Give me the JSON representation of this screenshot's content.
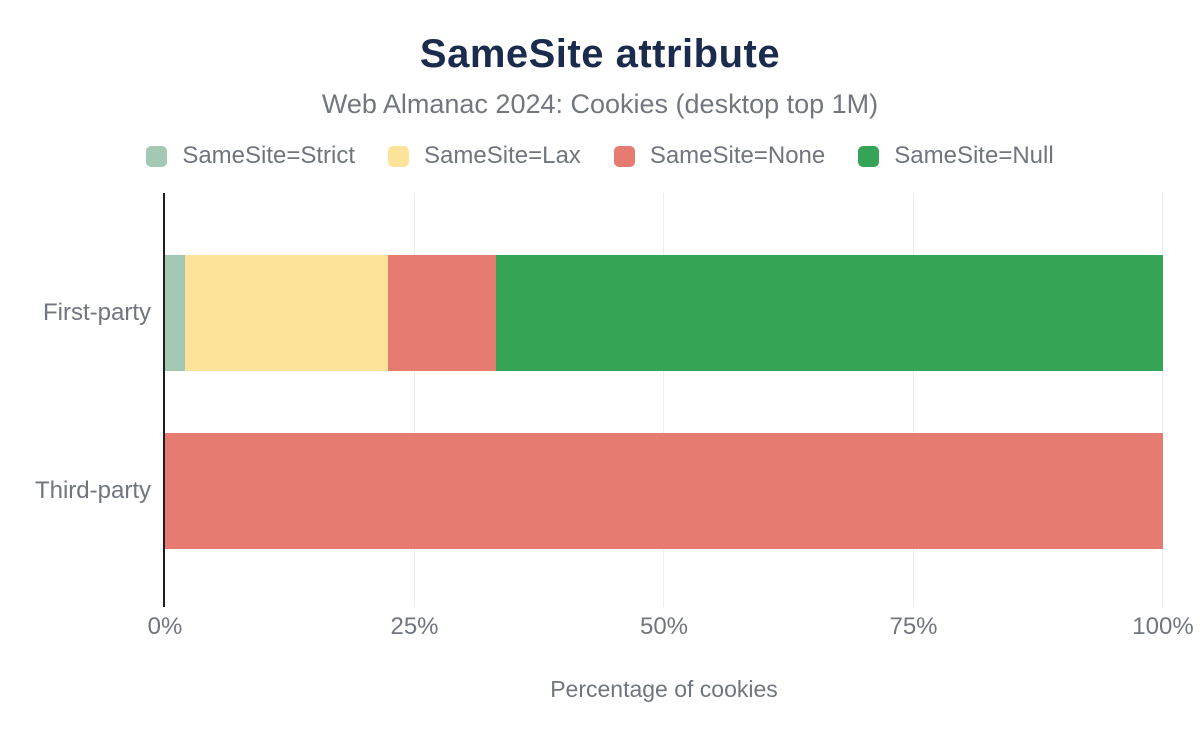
{
  "title": "SameSite attribute",
  "subtitle": "Web Almanac 2024: Cookies (desktop top 1M)",
  "colors": {
    "strict": "#a3c9b5",
    "lax": "#fde39a",
    "none": "#e57b71",
    "null": "#36a457",
    "title_text": "#1b2b4d",
    "subtitle_text": "#72777f",
    "label_text": "#70757e",
    "axis_line": "#1f1f1f",
    "gridline": "#ededed",
    "background": "#ffffff"
  },
  "legend": [
    {
      "label": "SameSite=Strict",
      "color": "#a3c9b5"
    },
    {
      "label": "SameSite=Lax",
      "color": "#fde39a"
    },
    {
      "label": "SameSite=None",
      "color": "#e57b71"
    },
    {
      "label": "SameSite=Null",
      "color": "#36a457"
    }
  ],
  "chart_data": {
    "type": "bar",
    "orientation": "horizontal",
    "stacked": true,
    "title": "SameSite attribute",
    "subtitle": "Web Almanac 2024: Cookies (desktop top 1M)",
    "categories": [
      "First-party",
      "Third-party"
    ],
    "series": [
      {
        "name": "SameSite=Strict",
        "color": "#a3c9b5",
        "values": [
          2.0,
          0
        ]
      },
      {
        "name": "SameSite=Lax",
        "color": "#fde39a",
        "values": [
          20.3,
          0
        ]
      },
      {
        "name": "SameSite=None",
        "color": "#e57b71",
        "values": [
          10.9,
          100
        ]
      },
      {
        "name": "SameSite=Null",
        "color": "#36a457",
        "values": [
          66.8,
          0
        ]
      }
    ],
    "xlabel": "Percentage of cookies",
    "ylabel": "",
    "xlim": [
      0,
      100
    ],
    "x_ticks": [
      {
        "label": "0%",
        "value": 0
      },
      {
        "label": "25%",
        "value": 25
      },
      {
        "label": "50%",
        "value": 50
      },
      {
        "label": "75%",
        "value": 75
      },
      {
        "label": "100%",
        "value": 100
      }
    ],
    "grid": true,
    "legend_position": "top"
  }
}
